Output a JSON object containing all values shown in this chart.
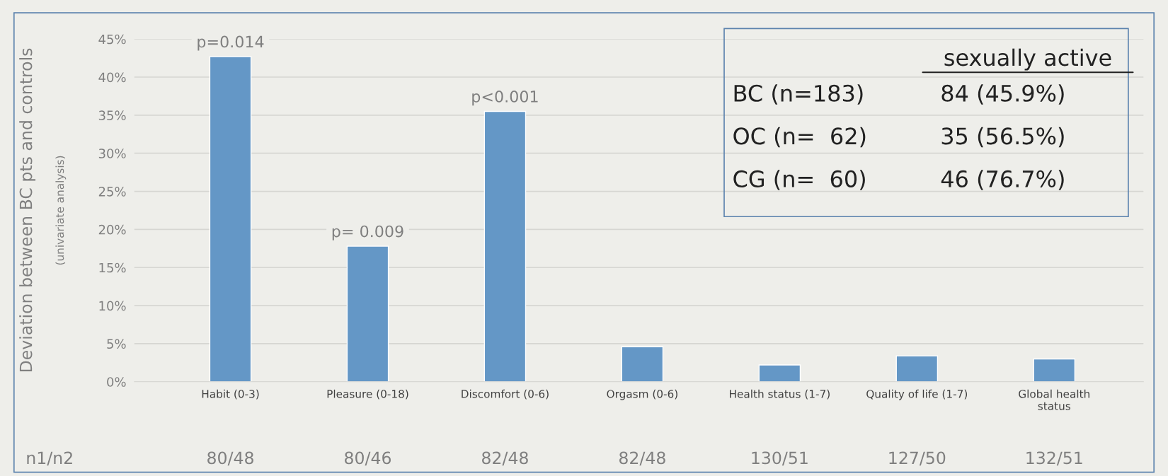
{
  "chart_data": {
    "type": "bar",
    "ylabel": "Deviation between BC pts and controls",
    "categories": [
      "Habit (0-3)",
      "Pleasure (0-18)",
      "Discomfort (0-6)",
      "Orgasm (0-6)",
      "Health status (1-7)",
      "Quality of life (1-7)",
      "Global health\nstatus"
    ],
    "values": [
      42.7,
      17.8,
      35.5,
      4.6,
      2.2,
      3.4,
      3.0
    ],
    "color": "#6497c6",
    "ylim": [
      0,
      45
    ],
    "yticks": [
      {
        "value": 0,
        "label": "0%"
      },
      {
        "value": 5,
        "label": "5%"
      },
      {
        "value": 10,
        "label": "10%"
      },
      {
        "value": 15,
        "label": "15%"
      },
      {
        "value": 20,
        "label": "20%"
      },
      {
        "value": 25,
        "label": "25%"
      },
      {
        "value": 30,
        "label": "30%"
      },
      {
        "value": 35,
        "label": "35%"
      },
      {
        "value": 40,
        "label": "40%"
      },
      {
        "value": 45,
        "label": "45%"
      }
    ],
    "grid": "y",
    "annotations": [
      {
        "text": "p=0.014",
        "x": "Habit (0-3)",
        "y": 42.7
      },
      {
        "text": "p= 0.009",
        "x": "Pleasure (0-18)",
        "y": 17.8
      },
      {
        "text": "p<0.001",
        "x": "Discomfort (0-6)",
        "y": 35.5
      },
      "(univariate analysis)",
      "n1/n2",
      "80/48",
      "80/46",
      "82/48",
      "82/48",
      "130/51",
      "127/50",
      "132/51",
      "sexually active",
      "BC (n=183)",
      "84 (45.9%)",
      "OC (n=  62)",
      "35 (56.5%)",
      "CG (n=  60)",
      "46 (76.7%)"
    ]
  }
}
